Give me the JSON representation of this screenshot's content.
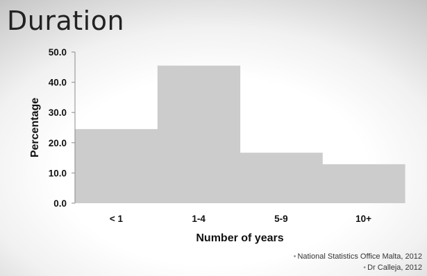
{
  "slide": {
    "title": "Duration"
  },
  "chart_data": {
    "type": "bar",
    "categories": [
      "< 1",
      "1-4",
      "5-9",
      "10+"
    ],
    "values": [
      24.5,
      45.5,
      16.7,
      12.9
    ],
    "ylabel": "Percentage",
    "xlabel": "Number of years",
    "ylim": [
      0,
      50
    ],
    "yticks": [
      "0.0",
      "10.0",
      "20.0",
      "30.0",
      "40.0",
      "50.0"
    ],
    "grid": false,
    "bar_color": "#cccccc"
  },
  "sources": [
    "National Statistics Office Malta, 2012",
    "Dr Calleja, 2012"
  ]
}
